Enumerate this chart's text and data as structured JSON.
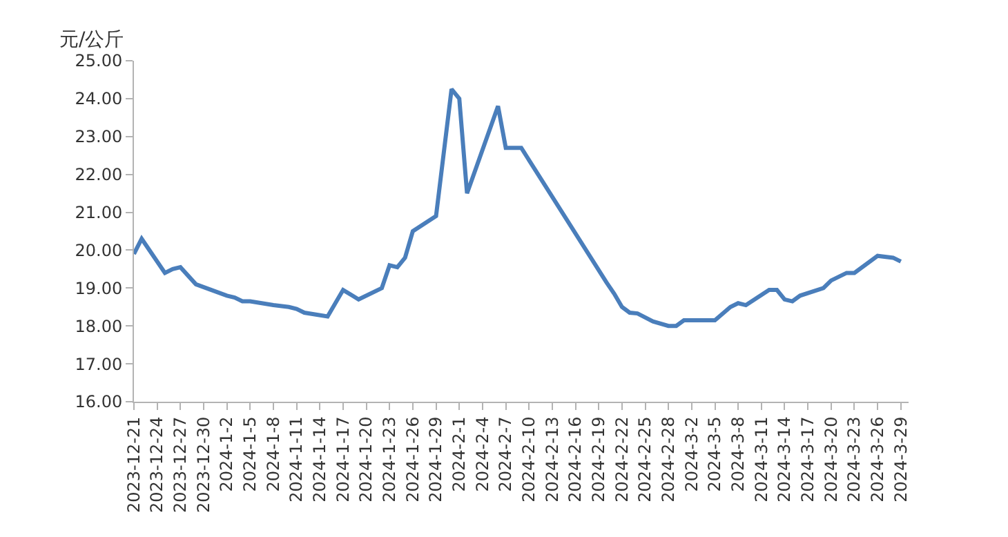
{
  "chart_data": {
    "type": "line",
    "ylabel": "元/公斤",
    "x": [
      "2023-12-21",
      "2023-12-22",
      "2023-12-25",
      "2023-12-26",
      "2023-12-27",
      "2023-12-29",
      "2023-12-31",
      "2024-01-02",
      "2024-01-03",
      "2024-01-04",
      "2024-01-05",
      "2024-01-08",
      "2024-01-10",
      "2024-01-11",
      "2024-01-12",
      "2024-01-15",
      "2024-01-17",
      "2024-01-19",
      "2024-01-22",
      "2024-01-23",
      "2024-01-24",
      "2024-01-25",
      "2024-01-26",
      "2024-01-29",
      "2024-01-31",
      "2024-02-01",
      "2024-02-02",
      "2024-02-06",
      "2024-02-07",
      "2024-02-09",
      "2024-02-20",
      "2024-02-21",
      "2024-02-22",
      "2024-02-23",
      "2024-02-24",
      "2024-02-26",
      "2024-02-28",
      "2024-02-29",
      "2024-03-01",
      "2024-03-05",
      "2024-03-07",
      "2024-03-08",
      "2024-03-09",
      "2024-03-12",
      "2024-03-13",
      "2024-03-14",
      "2024-03-15",
      "2024-03-16",
      "2024-03-19",
      "2024-03-20",
      "2024-03-22",
      "2024-03-23",
      "2024-03-26",
      "2024-03-28",
      "2024-03-29"
    ],
    "series": [
      {
        "color": "#4a7ebb",
        "values": [
          19.9,
          20.3,
          19.4,
          19.5,
          19.55,
          19.1,
          18.95,
          18.8,
          18.75,
          18.65,
          18.65,
          18.55,
          18.5,
          18.45,
          18.35,
          18.25,
          18.95,
          18.7,
          19.0,
          19.6,
          19.55,
          19.8,
          20.5,
          20.9,
          24.25,
          24.0,
          21.5,
          23.8,
          22.7,
          22.7,
          19.15,
          18.85,
          18.5,
          18.35,
          18.33,
          18.12,
          18.0,
          18.0,
          18.15,
          18.15,
          18.5,
          18.6,
          18.55,
          18.95,
          18.95,
          18.7,
          18.65,
          18.8,
          19.0,
          19.2,
          19.4,
          19.4,
          19.85,
          19.8,
          19.7
        ]
      }
    ],
    "xlim": [
      "2023-12-21",
      "2024-03-30"
    ],
    "xticks": [
      {
        "value": "2023-12-21",
        "label": "2023-12-21"
      },
      {
        "value": "2023-12-24",
        "label": "2023-12-24"
      },
      {
        "value": "2023-12-27",
        "label": "2023-12-27"
      },
      {
        "value": "2023-12-30",
        "label": "2023-12-30"
      },
      {
        "value": "2024-01-02",
        "label": "2024-1-2"
      },
      {
        "value": "2024-01-05",
        "label": "2024-1-5"
      },
      {
        "value": "2024-01-08",
        "label": "2024-1-8"
      },
      {
        "value": "2024-01-11",
        "label": "2024-1-11"
      },
      {
        "value": "2024-01-14",
        "label": "2024-1-14"
      },
      {
        "value": "2024-01-17",
        "label": "2024-1-17"
      },
      {
        "value": "2024-01-20",
        "label": "2024-1-20"
      },
      {
        "value": "2024-01-23",
        "label": "2024-1-23"
      },
      {
        "value": "2024-01-26",
        "label": "2024-1-26"
      },
      {
        "value": "2024-01-29",
        "label": "2024-1-29"
      },
      {
        "value": "2024-02-01",
        "label": "2024-2-1"
      },
      {
        "value": "2024-02-04",
        "label": "2024-2-4"
      },
      {
        "value": "2024-02-07",
        "label": "2024-2-7"
      },
      {
        "value": "2024-02-10",
        "label": "2024-2-10"
      },
      {
        "value": "2024-02-13",
        "label": "2024-2-13"
      },
      {
        "value": "2024-02-16",
        "label": "2024-2-16"
      },
      {
        "value": "2024-02-19",
        "label": "2024-2-19"
      },
      {
        "value": "2024-02-22",
        "label": "2024-2-22"
      },
      {
        "value": "2024-02-25",
        "label": "2024-2-25"
      },
      {
        "value": "2024-02-28",
        "label": "2024-2-28"
      },
      {
        "value": "2024-03-02",
        "label": "2024-3-2"
      },
      {
        "value": "2024-03-05",
        "label": "2024-3-5"
      },
      {
        "value": "2024-03-08",
        "label": "2024-3-8"
      },
      {
        "value": "2024-03-11",
        "label": "2024-3-11"
      },
      {
        "value": "2024-03-14",
        "label": "2024-3-14"
      },
      {
        "value": "2024-03-17",
        "label": "2024-3-17"
      },
      {
        "value": "2024-03-20",
        "label": "2024-3-20"
      },
      {
        "value": "2024-03-23",
        "label": "2024-3-23"
      },
      {
        "value": "2024-03-26",
        "label": "2024-3-26"
      },
      {
        "value": "2024-03-29",
        "label": "2024-3-29"
      }
    ],
    "ylim": [
      16,
      25
    ],
    "yticks": [
      {
        "value": 16,
        "label": "16.00"
      },
      {
        "value": 17,
        "label": "17.00"
      },
      {
        "value": 18,
        "label": "18.00"
      },
      {
        "value": 19,
        "label": "19.00"
      },
      {
        "value": 20,
        "label": "20.00"
      },
      {
        "value": 21,
        "label": "21.00"
      },
      {
        "value": 22,
        "label": "22.00"
      },
      {
        "value": 23,
        "label": "23.00"
      },
      {
        "value": 24,
        "label": "24.00"
      },
      {
        "value": 25,
        "label": "25.00"
      }
    ],
    "marker": "none",
    "line_style": "solid"
  }
}
